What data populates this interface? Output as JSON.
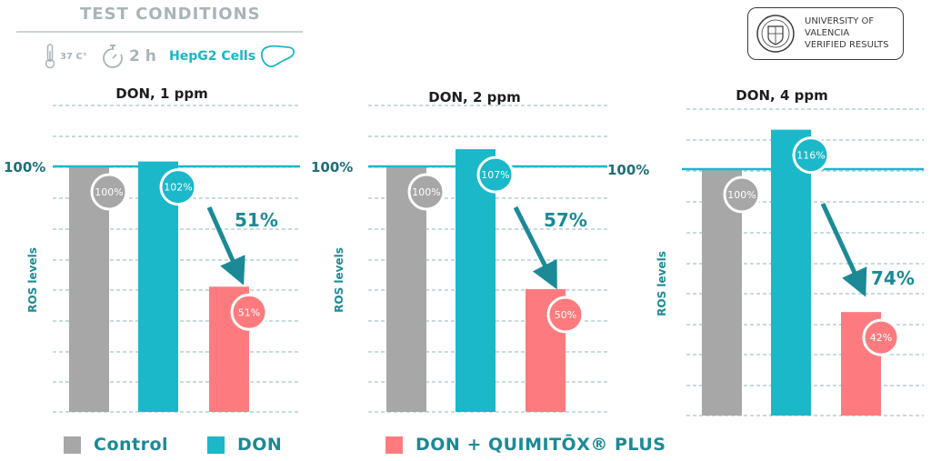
{
  "header": {
    "title": "TEST CONDITIONS",
    "temperature": "37 C°",
    "time": "2 h",
    "cells": "HepG2 Cells"
  },
  "badge": {
    "line1": "UNIVERSITY OF",
    "line2": "VALENCIA",
    "line3": "VERIFIED RESULTS"
  },
  "colors": {
    "control": "#a7a7a7",
    "don": "#1ab8c9",
    "don_plus": "#fd7b7e",
    "accent": "#1b8a96",
    "grid": "#8fb7bb"
  },
  "legend": {
    "control": "Control",
    "don": "DON",
    "don_plus": "DON + QUIMITŌX® PLUS"
  },
  "chart_data": [
    {
      "type": "bar",
      "title": "DON, 1 ppm",
      "ylabel": "ROS levels",
      "reference_label": "100%",
      "categories": [
        "Control",
        "DON",
        "DON + QUIMITŌX® PLUS"
      ],
      "values": [
        100,
        102,
        51
      ],
      "value_labels": [
        "100%",
        "102%",
        "51%"
      ],
      "reduction_label": "51%",
      "ylim": [
        0,
        120
      ],
      "grid": true
    },
    {
      "type": "bar",
      "title": "DON, 2 ppm",
      "ylabel": "ROS levels",
      "reference_label": "100%",
      "categories": [
        "Control",
        "DON",
        "DON + QUIMITŌX® PLUS"
      ],
      "values": [
        100,
        107,
        50
      ],
      "value_labels": [
        "100%",
        "107%",
        "50%"
      ],
      "reduction_label": "57%",
      "ylim": [
        0,
        120
      ],
      "grid": true
    },
    {
      "type": "bar",
      "title": "DON, 4 ppm",
      "ylabel": "ROS levels",
      "reference_label": "100%",
      "categories": [
        "Control",
        "DON",
        "DON + QUIMITŌX® PLUS"
      ],
      "values": [
        100,
        116,
        42
      ],
      "value_labels": [
        "100%",
        "116%",
        "42%"
      ],
      "reduction_label": "74%",
      "ylim": [
        0,
        120
      ],
      "grid": true
    }
  ]
}
